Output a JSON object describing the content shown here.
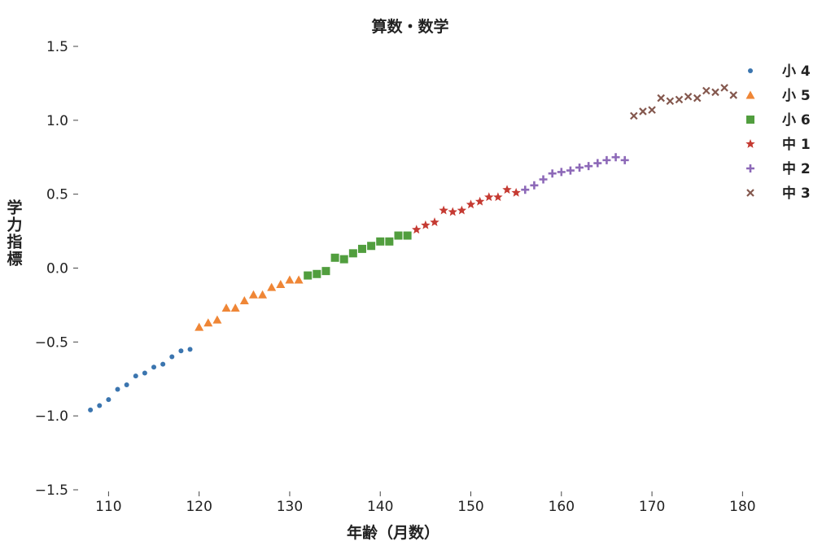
{
  "chart_data": {
    "type": "scatter",
    "title": "算数・数学",
    "xlabel": "年齢（月数）",
    "ylabel": "学力指標",
    "xlim": [
      107,
      185
    ],
    "ylim": [
      -1.5,
      1.5
    ],
    "xticks": [
      110,
      120,
      130,
      140,
      150,
      160,
      170,
      180
    ],
    "yticks": [
      -1.5,
      -1.0,
      -0.5,
      0.0,
      0.5,
      1.0,
      1.5
    ],
    "ytick_labels": [
      "−1.5",
      "−1.0",
      "−0.5",
      "0.0",
      "0.5",
      "1.0",
      "1.5"
    ],
    "grid": false,
    "legend_position": "right",
    "series": [
      {
        "name": "小 4",
        "marker": "circle",
        "color": "#3b75af",
        "points": [
          [
            108,
            -0.96
          ],
          [
            109,
            -0.93
          ],
          [
            110,
            -0.89
          ],
          [
            111,
            -0.82
          ],
          [
            112,
            -0.79
          ],
          [
            113,
            -0.73
          ],
          [
            114,
            -0.71
          ],
          [
            115,
            -0.67
          ],
          [
            116,
            -0.65
          ],
          [
            117,
            -0.6
          ],
          [
            118,
            -0.56
          ],
          [
            119,
            -0.55
          ]
        ]
      },
      {
        "name": "小 5",
        "marker": "triangle",
        "color": "#ef8636",
        "points": [
          [
            120,
            -0.4
          ],
          [
            121,
            -0.37
          ],
          [
            122,
            -0.35
          ],
          [
            123,
            -0.27
          ],
          [
            124,
            -0.27
          ],
          [
            125,
            -0.22
          ],
          [
            126,
            -0.18
          ],
          [
            127,
            -0.18
          ],
          [
            128,
            -0.13
          ],
          [
            129,
            -0.11
          ],
          [
            130,
            -0.08
          ],
          [
            131,
            -0.08
          ]
        ]
      },
      {
        "name": "小 6",
        "marker": "square",
        "color": "#519e3e",
        "points": [
          [
            132,
            -0.05
          ],
          [
            133,
            -0.04
          ],
          [
            134,
            -0.02
          ],
          [
            135,
            0.07
          ],
          [
            136,
            0.06
          ],
          [
            137,
            0.1
          ],
          [
            138,
            0.13
          ],
          [
            139,
            0.15
          ],
          [
            140,
            0.18
          ],
          [
            141,
            0.18
          ],
          [
            142,
            0.22
          ],
          [
            143,
            0.22
          ]
        ]
      },
      {
        "name": "中 1",
        "marker": "star",
        "color": "#c53a32",
        "points": [
          [
            144,
            0.26
          ],
          [
            145,
            0.29
          ],
          [
            146,
            0.31
          ],
          [
            147,
            0.39
          ],
          [
            148,
            0.38
          ],
          [
            149,
            0.39
          ],
          [
            150,
            0.43
          ],
          [
            151,
            0.45
          ],
          [
            152,
            0.48
          ],
          [
            153,
            0.48
          ],
          [
            154,
            0.53
          ],
          [
            155,
            0.51
          ]
        ]
      },
      {
        "name": "中 2",
        "marker": "plus",
        "color": "#8d69b8",
        "points": [
          [
            156,
            0.53
          ],
          [
            157,
            0.56
          ],
          [
            158,
            0.6
          ],
          [
            159,
            0.64
          ],
          [
            160,
            0.65
          ],
          [
            161,
            0.66
          ],
          [
            162,
            0.68
          ],
          [
            163,
            0.69
          ],
          [
            164,
            0.71
          ],
          [
            165,
            0.73
          ],
          [
            166,
            0.75
          ],
          [
            167,
            0.73
          ]
        ]
      },
      {
        "name": "中 3",
        "marker": "x",
        "color": "#84584e",
        "points": [
          [
            168,
            1.03
          ],
          [
            169,
            1.06
          ],
          [
            170,
            1.07
          ],
          [
            171,
            1.15
          ],
          [
            172,
            1.13
          ],
          [
            173,
            1.14
          ],
          [
            174,
            1.16
          ],
          [
            175,
            1.15
          ],
          [
            176,
            1.2
          ],
          [
            177,
            1.19
          ],
          [
            178,
            1.22
          ],
          [
            179,
            1.17
          ]
        ]
      }
    ]
  }
}
